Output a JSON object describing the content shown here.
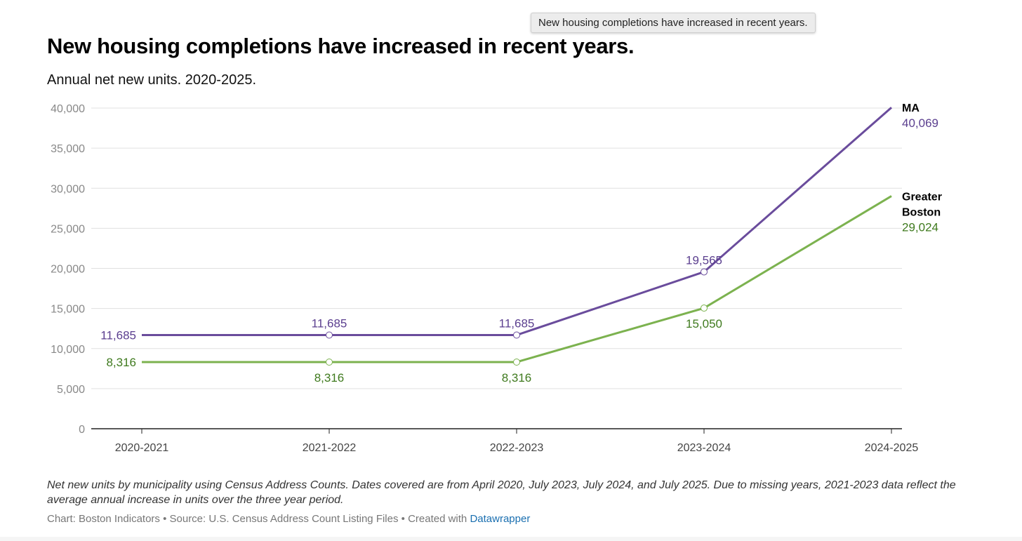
{
  "tooltip": "New housing completions have increased in recent years.",
  "chart_data": {
    "type": "line",
    "title": "New housing completions have increased in recent years.",
    "subtitle": "Annual net new units. 2020-2025.",
    "categories": [
      "2020-2021",
      "2021-2022",
      "2022-2023",
      "2023-2024",
      "2024-2025"
    ],
    "ylim": [
      0,
      40000
    ],
    "yticks": [
      0,
      5000,
      10000,
      15000,
      20000,
      25000,
      30000,
      35000,
      40000
    ],
    "ytick_labels": [
      "0",
      "5,000",
      "10,000",
      "15,000",
      "20,000",
      "25,000",
      "30,000",
      "35,000",
      "40,000"
    ],
    "grid": true,
    "series": [
      {
        "name": "MA",
        "name_lines": [
          "MA"
        ],
        "color": "#6a4c9c",
        "label_color": "#5b3f8f",
        "values": [
          11685,
          11685,
          11685,
          19565,
          40069
        ],
        "labels": [
          "11,685",
          "11,685",
          "11,685",
          "19,565",
          "40,069"
        ]
      },
      {
        "name": "Greater Boston",
        "name_lines": [
          "Greater",
          "Boston"
        ],
        "color": "#7cb24f",
        "label_color": "#3f7a1e",
        "values": [
          8316,
          8316,
          8316,
          15050,
          29024
        ],
        "labels": [
          "8,316",
          "8,316",
          "8,316",
          "15,050",
          "29,024"
        ]
      }
    ]
  },
  "notes": "Net new units by municipality using Census Address Counts. Dates covered are from April 2020, July 2023, July 2024, and July 2025. Due to missing years, 2021-2023 data reflect the average annual increase in units over the three year period.",
  "credit": {
    "prefix": "Chart: Boston Indicators • Source: U.S. Census Address Count Listing Files • Created with ",
    "link": "Datawrapper"
  }
}
